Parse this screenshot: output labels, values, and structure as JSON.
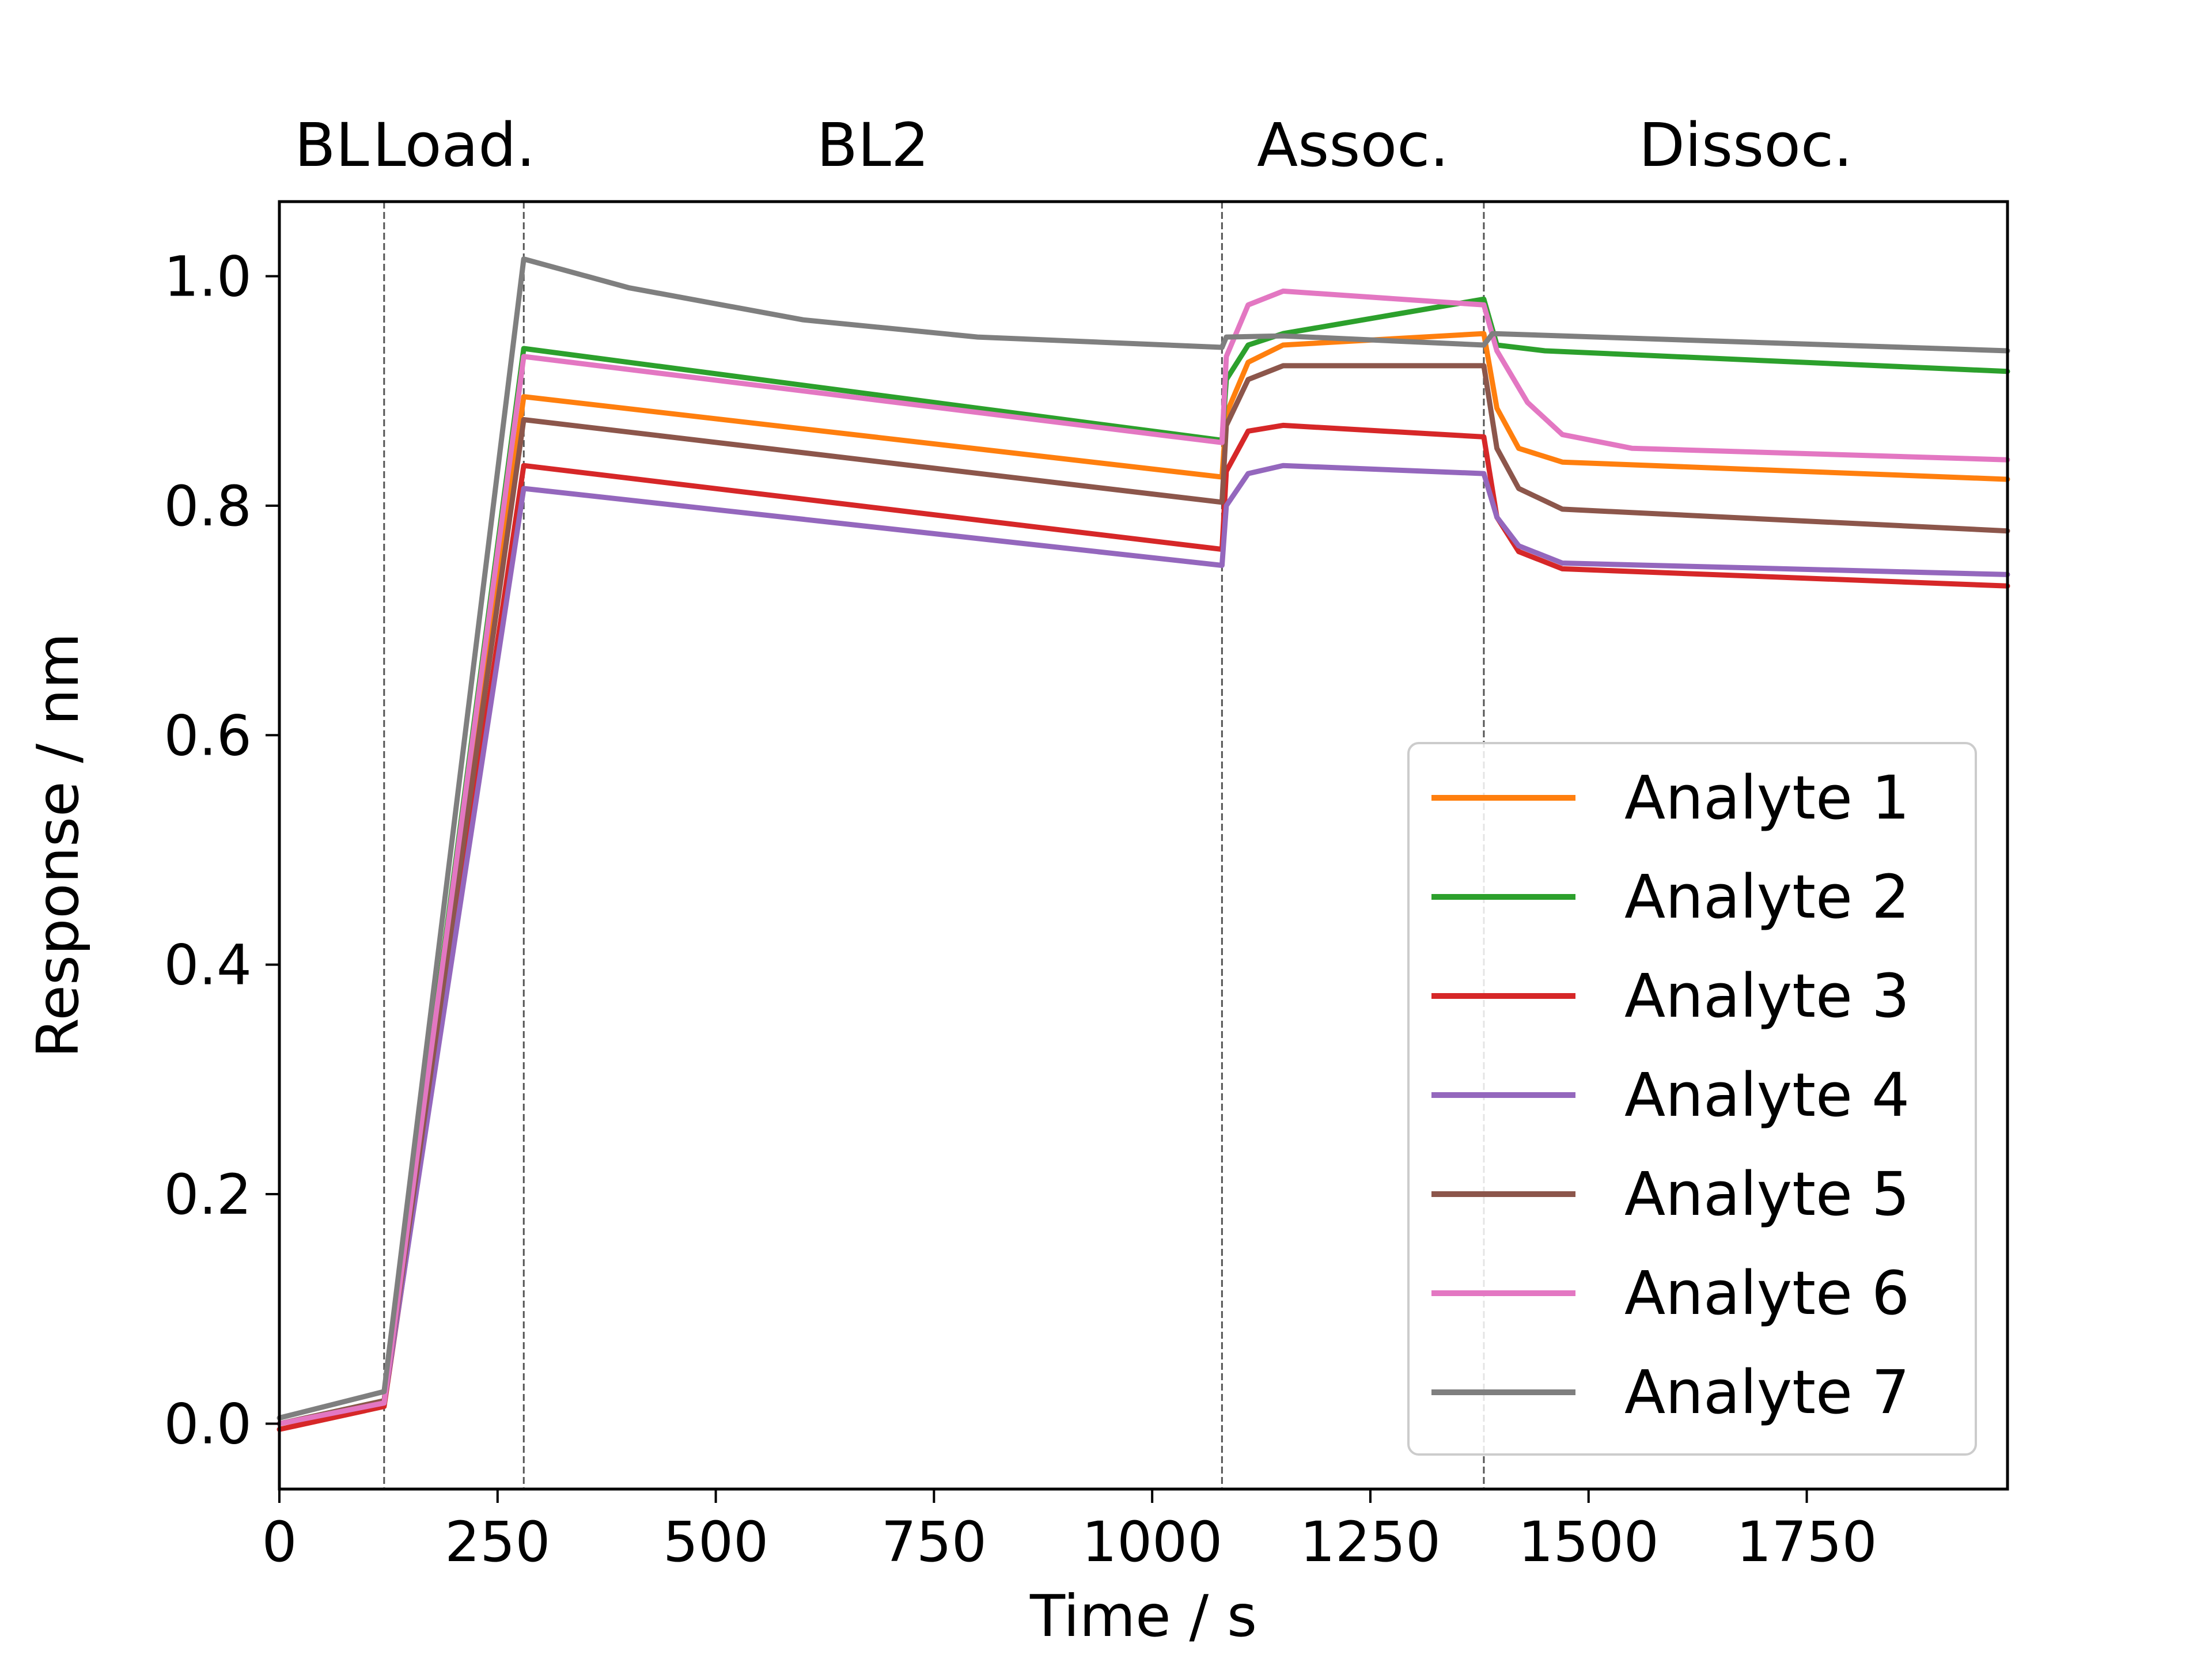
{
  "chart_data": {
    "type": "line",
    "title": "",
    "xlabel": "Time / s",
    "ylabel": "Response / nm",
    "xlim": [
      0,
      1980
    ],
    "ylim": [
      -0.057,
      1.065
    ],
    "xticks": [
      0,
      250,
      500,
      750,
      1000,
      1250,
      1500,
      1750
    ],
    "yticks": [
      0.0,
      0.2,
      0.4,
      0.6,
      0.8,
      1.0
    ],
    "xtick_labels": [
      "0",
      "250",
      "500",
      "750",
      "1000",
      "1250",
      "1500",
      "1750"
    ],
    "ytick_labels": [
      "0.0",
      "0.2",
      "0.4",
      "0.6",
      "0.8",
      "1.0"
    ],
    "grid": false,
    "legend_position": "lower-right",
    "phases": [
      {
        "label": "BL",
        "start": 0,
        "end": 120
      },
      {
        "label": "Load.",
        "start": 120,
        "end": 280
      },
      {
        "label": "BL2",
        "start": 280,
        "end": 1080
      },
      {
        "label": "Assoc.",
        "start": 1080,
        "end": 1380
      },
      {
        "label": "Dissoc.",
        "start": 1380,
        "end": 1980
      }
    ],
    "phase_boundaries": [
      120,
      280,
      1080,
      1380
    ],
    "series": [
      {
        "name": "Analyte 1",
        "color": "#ff7f0e",
        "points": [
          [
            0,
            0.0
          ],
          [
            120,
            0.018
          ],
          [
            280,
            0.895
          ],
          [
            1080,
            0.825
          ],
          [
            1085,
            0.88
          ],
          [
            1110,
            0.925
          ],
          [
            1150,
            0.94
          ],
          [
            1380,
            0.95
          ],
          [
            1395,
            0.885
          ],
          [
            1420,
            0.85
          ],
          [
            1470,
            0.838
          ],
          [
            1980,
            0.823
          ]
        ]
      },
      {
        "name": "Analyte 2",
        "color": "#2ca02c",
        "points": [
          [
            0,
            0.0
          ],
          [
            120,
            0.02
          ],
          [
            280,
            0.937
          ],
          [
            1080,
            0.857
          ],
          [
            1085,
            0.91
          ],
          [
            1110,
            0.94
          ],
          [
            1150,
            0.95
          ],
          [
            1380,
            0.98
          ],
          [
            1395,
            0.94
          ],
          [
            1450,
            0.935
          ],
          [
            1980,
            0.917
          ]
        ]
      },
      {
        "name": "Analyte 3",
        "color": "#d62728",
        "points": [
          [
            0,
            -0.005
          ],
          [
            120,
            0.015
          ],
          [
            280,
            0.835
          ],
          [
            1080,
            0.762
          ],
          [
            1085,
            0.83
          ],
          [
            1110,
            0.865
          ],
          [
            1150,
            0.87
          ],
          [
            1380,
            0.86
          ],
          [
            1395,
            0.79
          ],
          [
            1420,
            0.76
          ],
          [
            1470,
            0.745
          ],
          [
            1980,
            0.73
          ]
        ]
      },
      {
        "name": "Analyte 4",
        "color": "#9467bd",
        "points": [
          [
            0,
            0.0
          ],
          [
            120,
            0.018
          ],
          [
            280,
            0.815
          ],
          [
            1080,
            0.748
          ],
          [
            1085,
            0.8
          ],
          [
            1110,
            0.828
          ],
          [
            1150,
            0.835
          ],
          [
            1380,
            0.828
          ],
          [
            1395,
            0.79
          ],
          [
            1420,
            0.765
          ],
          [
            1470,
            0.75
          ],
          [
            1980,
            0.74
          ]
        ]
      },
      {
        "name": "Analyte 5",
        "color": "#8c564b",
        "points": [
          [
            0,
            0.0
          ],
          [
            120,
            0.02
          ],
          [
            280,
            0.875
          ],
          [
            1080,
            0.803
          ],
          [
            1085,
            0.87
          ],
          [
            1110,
            0.91
          ],
          [
            1150,
            0.922
          ],
          [
            1380,
            0.922
          ],
          [
            1395,
            0.85
          ],
          [
            1420,
            0.815
          ],
          [
            1470,
            0.797
          ],
          [
            1980,
            0.778
          ]
        ]
      },
      {
        "name": "Analyte 6",
        "color": "#e377c2",
        "points": [
          [
            0,
            0.0
          ],
          [
            120,
            0.018
          ],
          [
            280,
            0.93
          ],
          [
            1080,
            0.855
          ],
          [
            1085,
            0.93
          ],
          [
            1110,
            0.975
          ],
          [
            1150,
            0.987
          ],
          [
            1380,
            0.975
          ],
          [
            1395,
            0.935
          ],
          [
            1430,
            0.89
          ],
          [
            1470,
            0.862
          ],
          [
            1550,
            0.85
          ],
          [
            1980,
            0.84
          ]
        ]
      },
      {
        "name": "Analyte 7",
        "color": "#7f7f7f",
        "points": [
          [
            0,
            0.005
          ],
          [
            120,
            0.028
          ],
          [
            280,
            1.015
          ],
          [
            400,
            0.99
          ],
          [
            600,
            0.962
          ],
          [
            800,
            0.947
          ],
          [
            1080,
            0.938
          ],
          [
            1085,
            0.947
          ],
          [
            1150,
            0.948
          ],
          [
            1380,
            0.94
          ],
          [
            1390,
            0.95
          ],
          [
            1980,
            0.935
          ]
        ]
      }
    ]
  }
}
